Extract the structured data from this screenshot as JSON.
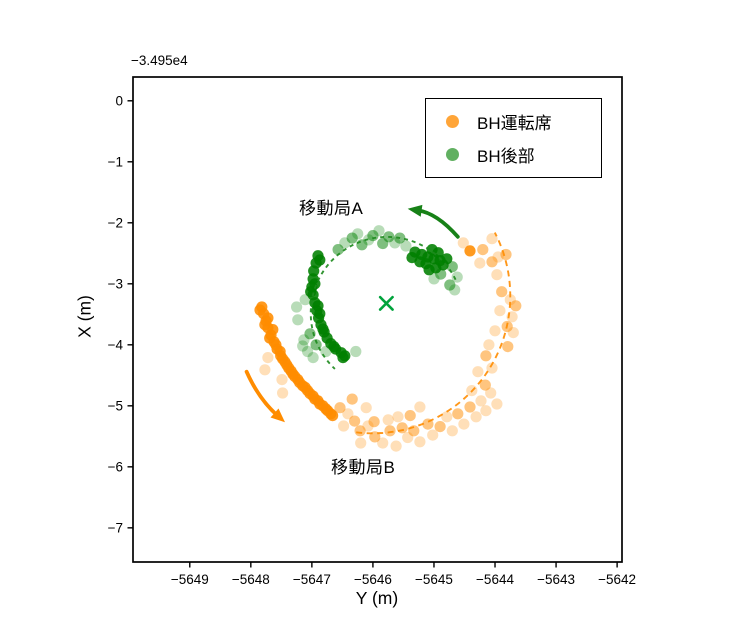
{
  "chart_data": {
    "type": "scatter",
    "title": "",
    "xlabel": "Y (m)",
    "ylabel": "X (m)",
    "axis_offset": "−3.495e4",
    "xlim": [
      -5649.93,
      -5641.92
    ],
    "ylim": [
      -7.56,
      0.39
    ],
    "xticks": [
      -5649,
      -5648,
      -5647,
      -5646,
      -5645,
      -5644,
      -5643,
      -5642
    ],
    "yticks": [
      0,
      -1,
      -2,
      -3,
      -4,
      -5,
      -6,
      -7
    ],
    "grid": false,
    "legend_position": "upper right",
    "series": [
      {
        "name": "BH運転席",
        "color": "#ff8c00",
        "marker": "circle",
        "opacity_levels": [
          0.28,
          0.5,
          0.88
        ],
        "points": [
          [
            -5647.82,
            -3.38,
            2
          ],
          [
            -5647.79,
            -3.49,
            2
          ],
          [
            -5647.75,
            -3.61,
            2
          ],
          [
            -5647.72,
            -3.72,
            2
          ],
          [
            -5647.67,
            -3.84,
            2
          ],
          [
            -5647.62,
            -3.95,
            2
          ],
          [
            -5647.57,
            -4.07,
            2
          ],
          [
            -5647.51,
            -4.18,
            2
          ],
          [
            -5647.44,
            -4.28,
            2
          ],
          [
            -5647.38,
            -4.38,
            2
          ],
          [
            -5647.31,
            -4.48,
            2
          ],
          [
            -5647.23,
            -4.57,
            2
          ],
          [
            -5647.15,
            -4.67,
            2
          ],
          [
            -5647.07,
            -4.75,
            2
          ],
          [
            -5646.98,
            -4.84,
            2
          ],
          [
            -5646.9,
            -4.92,
            2
          ],
          [
            -5646.82,
            -5.0,
            2
          ],
          [
            -5646.74,
            -5.08,
            2
          ],
          [
            -5646.66,
            -5.16,
            2
          ],
          [
            -5647.85,
            -3.43,
            2
          ],
          [
            -5647.77,
            -3.67,
            2
          ],
          [
            -5647.69,
            -3.89,
            2
          ],
          [
            -5647.59,
            -4.0,
            2
          ],
          [
            -5647.52,
            -4.11,
            2
          ],
          [
            -5647.41,
            -4.33,
            2
          ],
          [
            -5647.28,
            -4.52,
            2
          ],
          [
            -5647.11,
            -4.7,
            2
          ],
          [
            -5646.95,
            -4.89,
            2
          ],
          [
            -5646.77,
            -5.05,
            2
          ],
          [
            -5646.69,
            -5.13,
            2
          ],
          [
            -5647.72,
            -3.56,
            2
          ],
          [
            -5647.64,
            -3.75,
            2
          ],
          [
            -5647.48,
            -4.23,
            2
          ],
          [
            -5647.34,
            -4.43,
            2
          ],
          [
            -5647.2,
            -4.62,
            2
          ],
          [
            -5647.03,
            -4.8,
            2
          ],
          [
            -5646.87,
            -4.97,
            2
          ],
          [
            -5647.77,
            -4.41,
            0
          ],
          [
            -5647.49,
            -4.57,
            0
          ],
          [
            -5647.48,
            -4.79,
            0
          ],
          [
            -5647.72,
            -4.21,
            0
          ],
          [
            -5646.54,
            -5.03,
            1
          ],
          [
            -5646.41,
            -5.13,
            0
          ],
          [
            -5646.3,
            -5.25,
            1
          ],
          [
            -5646.48,
            -5.33,
            0
          ],
          [
            -5646.21,
            -5.41,
            1
          ],
          [
            -5646.08,
            -5.33,
            0
          ],
          [
            -5645.97,
            -5.51,
            1
          ],
          [
            -5645.84,
            -5.61,
            0
          ],
          [
            -5645.72,
            -5.41,
            1
          ],
          [
            -5645.62,
            -5.66,
            0
          ],
          [
            -5645.52,
            -5.36,
            1
          ],
          [
            -5645.43,
            -5.52,
            0
          ],
          [
            -5645.33,
            -5.41,
            1
          ],
          [
            -5645.23,
            -5.59,
            0
          ],
          [
            -5645.1,
            -5.3,
            1
          ],
          [
            -5645.02,
            -5.48,
            0
          ],
          [
            -5644.9,
            -5.34,
            1
          ],
          [
            -5644.79,
            -5.18,
            0
          ],
          [
            -5644.7,
            -5.41,
            0
          ],
          [
            -5644.61,
            -5.13,
            1
          ],
          [
            -5644.51,
            -5.3,
            0
          ],
          [
            -5644.41,
            -5.02,
            1
          ],
          [
            -5644.31,
            -5.18,
            0
          ],
          [
            -5644.23,
            -4.92,
            0
          ],
          [
            -5644.15,
            -5.08,
            0
          ],
          [
            -5645.23,
            -5.02,
            0
          ],
          [
            -5645.39,
            -5.16,
            1
          ],
          [
            -5645.59,
            -5.18,
            0
          ],
          [
            -5646.11,
            -5.03,
            0
          ],
          [
            -5646.34,
            -4.89,
            1
          ],
          [
            -5644.07,
            -4.79,
            0
          ],
          [
            -5643.97,
            -4.97,
            0
          ],
          [
            -5646.2,
            -5.61,
            0
          ],
          [
            -5645.98,
            -5.26,
            1
          ],
          [
            -5645.75,
            -5.23,
            0
          ],
          [
            -5644.2,
            -2.44,
            1
          ],
          [
            -5644.25,
            -2.66,
            0
          ],
          [
            -5644.05,
            -2.64,
            1
          ],
          [
            -5643.95,
            -2.56,
            0
          ],
          [
            -5643.82,
            -2.52,
            1
          ],
          [
            -5643.97,
            -2.85,
            0
          ],
          [
            -5643.89,
            -3.13,
            1
          ],
          [
            -5643.75,
            -3.26,
            0
          ],
          [
            -5643.66,
            -3.36,
            1
          ],
          [
            -5643.72,
            -3.54,
            0
          ],
          [
            -5643.8,
            -3.7,
            1
          ],
          [
            -5643.7,
            -3.8,
            0
          ],
          [
            -5643.79,
            -4.03,
            1
          ],
          [
            -5643.92,
            -3.44,
            0
          ],
          [
            -5644.0,
            -3.77,
            0
          ],
          [
            -5644.15,
            -4.18,
            1
          ],
          [
            -5644.05,
            -4.38,
            0
          ],
          [
            -5644.28,
            -4.44,
            0
          ],
          [
            -5644.16,
            -4.66,
            1
          ],
          [
            -5644.38,
            -4.75,
            0
          ],
          [
            -5644.1,
            -4.0,
            0
          ],
          [
            -5644.41,
            -2.46,
            2
          ],
          [
            -5644.52,
            -2.33,
            0
          ],
          [
            -5644.05,
            -2.26,
            0
          ]
        ]
      },
      {
        "name": "BH後部",
        "color": "#008000",
        "marker": "circle",
        "opacity_levels": [
          0.28,
          0.5,
          0.88
        ],
        "points": [
          [
            -5646.9,
            -2.54,
            2
          ],
          [
            -5646.93,
            -2.66,
            2
          ],
          [
            -5646.97,
            -2.79,
            2
          ],
          [
            -5646.98,
            -2.92,
            2
          ],
          [
            -5647.0,
            -3.05,
            2
          ],
          [
            -5646.98,
            -3.18,
            2
          ],
          [
            -5646.95,
            -3.31,
            2
          ],
          [
            -5646.92,
            -3.44,
            2
          ],
          [
            -5646.89,
            -3.56,
            2
          ],
          [
            -5646.85,
            -3.67,
            2
          ],
          [
            -5646.8,
            -3.79,
            2
          ],
          [
            -5646.75,
            -3.89,
            2
          ],
          [
            -5646.69,
            -3.98,
            2
          ],
          [
            -5646.61,
            -4.07,
            2
          ],
          [
            -5646.52,
            -4.13,
            2
          ],
          [
            -5646.46,
            -4.18,
            2
          ],
          [
            -5646.87,
            -2.61,
            2
          ],
          [
            -5646.95,
            -3.0,
            2
          ],
          [
            -5646.9,
            -3.36,
            2
          ],
          [
            -5646.82,
            -3.74,
            2
          ],
          [
            -5646.64,
            -4.03,
            2
          ],
          [
            -5646.49,
            -4.21,
            2
          ],
          [
            -5647.02,
            -3.13,
            2
          ],
          [
            -5646.87,
            -3.49,
            2
          ],
          [
            -5647.11,
            -3.26,
            0
          ],
          [
            -5647.13,
            -3.92,
            0
          ],
          [
            -5647.07,
            -4.11,
            0
          ],
          [
            -5647.03,
            -3.82,
            1
          ],
          [
            -5647.15,
            -4.02,
            0
          ],
          [
            -5646.93,
            -4.0,
            1
          ],
          [
            -5646.77,
            -4.11,
            0
          ],
          [
            -5646.98,
            -4.21,
            0
          ],
          [
            -5647.25,
            -3.38,
            0
          ],
          [
            -5647.23,
            -3.59,
            0
          ],
          [
            -5646.28,
            -4.11,
            0
          ],
          [
            -5646.34,
            -2.25,
            1
          ],
          [
            -5646.25,
            -2.18,
            0
          ],
          [
            -5646.18,
            -2.36,
            1
          ],
          [
            -5646.07,
            -2.28,
            0
          ],
          [
            -5646.0,
            -2.21,
            1
          ],
          [
            -5645.9,
            -2.13,
            0
          ],
          [
            -5645.84,
            -2.34,
            1
          ],
          [
            -5645.74,
            -2.23,
            1
          ],
          [
            -5645.64,
            -2.33,
            0
          ],
          [
            -5645.56,
            -2.25,
            1
          ],
          [
            -5646.46,
            -2.33,
            0
          ],
          [
            -5646.57,
            -2.44,
            1
          ],
          [
            -5645.46,
            -2.38,
            0
          ],
          [
            -5645.31,
            -2.48,
            2
          ],
          [
            -5645.2,
            -2.52,
            2
          ],
          [
            -5645.1,
            -2.56,
            2
          ],
          [
            -5645.0,
            -2.59,
            2
          ],
          [
            -5644.9,
            -2.62,
            2
          ],
          [
            -5645.13,
            -2.67,
            2
          ],
          [
            -5645.03,
            -2.44,
            2
          ],
          [
            -5644.93,
            -2.49,
            2
          ],
          [
            -5645.23,
            -2.64,
            2
          ],
          [
            -5645.08,
            -2.77,
            2
          ],
          [
            -5644.97,
            -2.74,
            2
          ],
          [
            -5644.85,
            -2.69,
            2
          ],
          [
            -5645.36,
            -2.57,
            2
          ],
          [
            -5644.79,
            -2.59,
            2
          ],
          [
            -5644.89,
            -2.84,
            1
          ],
          [
            -5645.0,
            -2.92,
            0
          ],
          [
            -5644.7,
            -2.72,
            1
          ],
          [
            -5644.62,
            -2.89,
            0
          ],
          [
            -5644.74,
            -3.02,
            1
          ],
          [
            -5644.66,
            -3.1,
            0
          ]
        ]
      }
    ],
    "center_marker": {
      "symbol": "x",
      "x": -5645.78,
      "y": -3.32,
      "color": "#00a33c"
    },
    "dashed_arcs": [
      {
        "color": "#ff8c00",
        "cx": -5646.0,
        "cy": -3.2,
        "r": 2.25,
        "start_deg": 263,
        "end_deg": 387.5,
        "dash": "6 4.5"
      },
      {
        "color": "#1d8a1d",
        "cx": -5645.77,
        "cy": -3.48,
        "r": 1.25,
        "start_deg": 26,
        "end_deg": 227,
        "dash": "4 4"
      }
    ],
    "arrows": [
      {
        "name": "direction-arrow-green",
        "color": "#178117",
        "tail": [
          -5644.61,
          -2.23
        ],
        "ctrl": [
          -5644.95,
          -1.84
        ],
        "tip": [
          -5645.43,
          -1.77
        ]
      },
      {
        "name": "direction-arrow-orange",
        "color": "#ff8c00",
        "tail": [
          -5648.07,
          -4.44
        ],
        "ctrl": [
          -5647.87,
          -4.89
        ],
        "tip": [
          -5647.44,
          -5.27
        ]
      }
    ],
    "annotations": [
      {
        "text": "移動局A",
        "x": -5647.18,
        "y": -1.57
      },
      {
        "text": "移動局B",
        "x": -5646.62,
        "y": -5.82
      }
    ]
  }
}
